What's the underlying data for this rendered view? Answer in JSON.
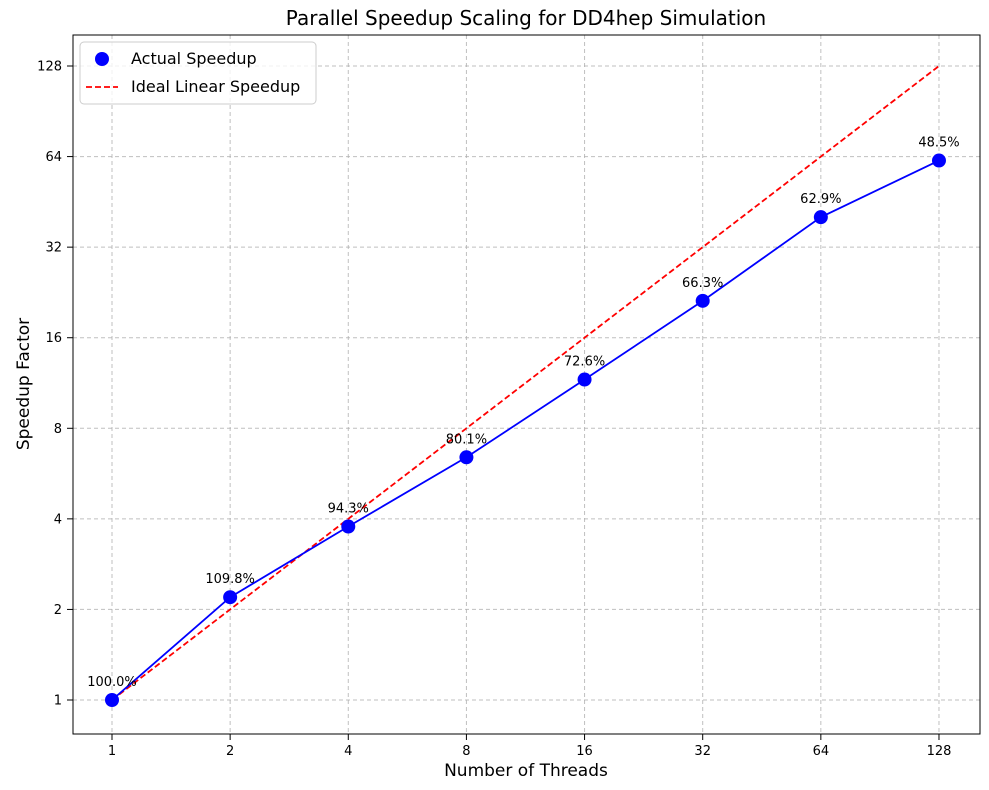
{
  "chart_data": {
    "type": "line",
    "title": "Parallel Speedup Scaling for DD4hep Simulation",
    "xlabel": "Number of Threads",
    "ylabel": "Speedup Factor",
    "x_scale": "log2",
    "y_scale": "log2",
    "x": [
      1,
      2,
      4,
      8,
      16,
      32,
      64,
      128
    ],
    "x_tick_labels": [
      "1",
      "2",
      "4",
      "8",
      "16",
      "32",
      "64",
      "128"
    ],
    "y_ticks": [
      1,
      2,
      4,
      8,
      16,
      32,
      64,
      128
    ],
    "y_tick_labels": [
      "1",
      "2",
      "4",
      "8",
      "16",
      "32",
      "64",
      "128"
    ],
    "grid": true,
    "legend_position": "top-left",
    "series": [
      {
        "name": "Actual Speedup",
        "style": "line-with-markers",
        "color": "#0000ff",
        "values": [
          1.0,
          2.196,
          3.772,
          6.408,
          11.616,
          21.216,
          40.256,
          62.08
        ],
        "annotations": [
          "100.0%",
          "109.8%",
          "94.3%",
          "80.1%",
          "72.6%",
          "66.3%",
          "62.9%",
          "48.5%"
        ]
      },
      {
        "name": "Ideal Linear Speedup",
        "style": "dashed-line",
        "color": "#ff0000",
        "values": [
          1,
          2,
          4,
          8,
          16,
          32,
          64,
          128
        ]
      }
    ]
  }
}
